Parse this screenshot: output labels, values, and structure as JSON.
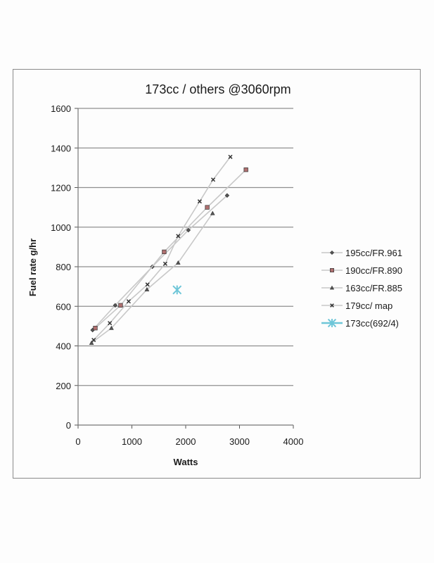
{
  "chart_data": {
    "type": "scatter",
    "title": "173cc / others @3060rpm",
    "xlabel": "Watts",
    "ylabel": "Fuel rate  g/hr",
    "xlim": [
      0,
      4000
    ],
    "ylim": [
      0,
      1600
    ],
    "x_ticks": [
      0,
      1000,
      2000,
      3000,
      4000
    ],
    "y_ticks": [
      0,
      200,
      400,
      600,
      800,
      1000,
      1200,
      1400,
      1600
    ],
    "x_tick_labels": [
      "0",
      "1000",
      "2000",
      "3000",
      "4000"
    ],
    "y_tick_labels": [
      "0",
      "200",
      "400",
      "600",
      "800",
      "1000",
      "1200",
      "1400",
      "1600"
    ],
    "grid": "horizontal",
    "legend_position": "right",
    "series": [
      {
        "name": "195cc/FR.961",
        "marker": "diamond",
        "color": "#555555",
        "line_color": "#c8c8c8",
        "x": [
          270,
          690,
          1380,
          2050,
          2770
        ],
        "y": [
          480,
          605,
          800,
          985,
          1160
        ]
      },
      {
        "name": "190cc/FR.890",
        "marker": "square",
        "color": "#b07070",
        "line_color": "#c8c8c8",
        "x": [
          320,
          790,
          1600,
          2400,
          3120
        ],
        "y": [
          490,
          605,
          875,
          1100,
          1290
        ]
      },
      {
        "name": "163cc/FR.885",
        "marker": "triangle",
        "color": "#555555",
        "line_color": "#c8c8c8",
        "x": [
          250,
          620,
          1280,
          1860,
          2500
        ],
        "y": [
          415,
          490,
          685,
          820,
          1070
        ]
      },
      {
        "name": "179cc/ map",
        "marker": "x",
        "color": "#333333",
        "line_color": "#c8c8c8",
        "x": [
          290,
          590,
          940,
          1290,
          1620,
          1860,
          2260,
          2510,
          2830
        ],
        "y": [
          430,
          515,
          625,
          710,
          815,
          955,
          1130,
          1240,
          1355
        ]
      },
      {
        "name": "173cc(692/4)",
        "marker": "asterisk",
        "color": "#6ec6d8",
        "line_color": "#6ec6d8",
        "x": [
          1840
        ],
        "y": [
          683
        ]
      }
    ]
  }
}
